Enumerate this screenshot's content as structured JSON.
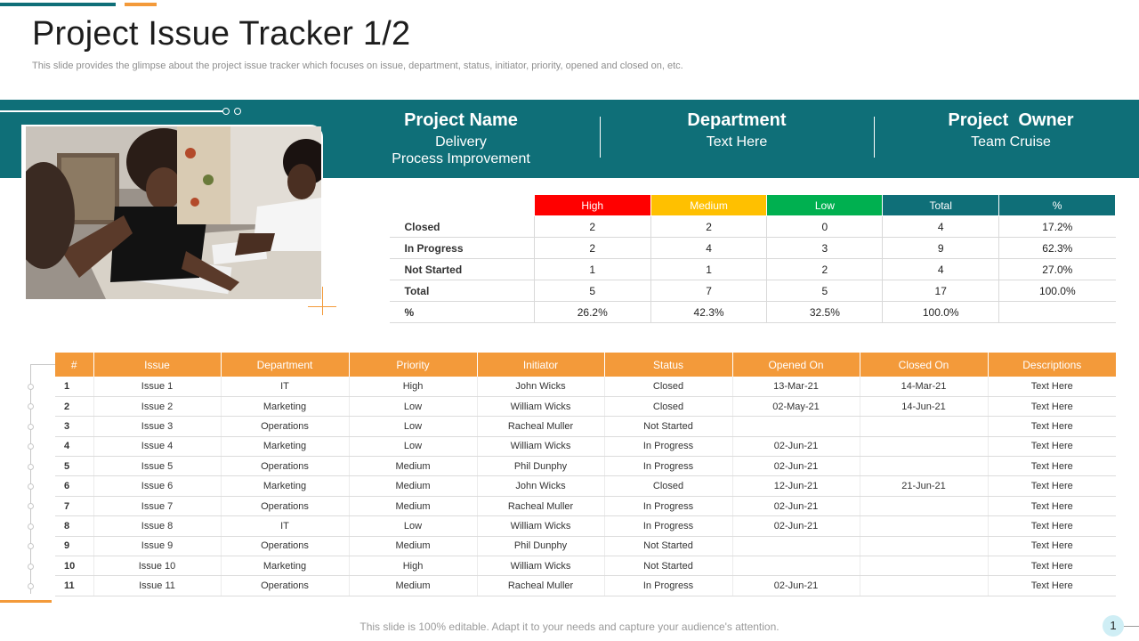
{
  "page": {
    "title": "Project Issue Tracker 1/2",
    "subtitle": "This slide provides the glimpse about the project issue tracker which focuses on issue, department, status, initiator, priority, opened and closed on, etc."
  },
  "project_info": [
    {
      "heading": "Project Name",
      "value_line1": "Delivery",
      "value_line2": "Process Improvement"
    },
    {
      "heading": "Department",
      "value_line1": "Text Here",
      "value_line2": ""
    },
    {
      "heading": "Project  Owner",
      "value_line1": "Team Cruise",
      "value_line2": ""
    }
  ],
  "summary": {
    "headers": [
      {
        "label": "High",
        "color": "#ff0000"
      },
      {
        "label": "Medium",
        "color": "#ffc000"
      },
      {
        "label": "Low",
        "color": "#00b050"
      },
      {
        "label": "Total",
        "color": "#0f6f78"
      },
      {
        "label": "%",
        "color": "#0f6f78"
      }
    ],
    "rows": [
      {
        "label": "Closed",
        "cells": [
          "2",
          "2",
          "0",
          "4",
          "17.2%"
        ]
      },
      {
        "label": "In Progress",
        "cells": [
          "2",
          "4",
          "3",
          "9",
          "62.3%"
        ]
      },
      {
        "label": "Not Started",
        "cells": [
          "1",
          "1",
          "2",
          "4",
          "27.0%"
        ]
      },
      {
        "label": "Total",
        "cells": [
          "5",
          "7",
          "5",
          "17",
          "100.0%"
        ]
      },
      {
        "label": "%",
        "cells": [
          "26.2%",
          "42.3%",
          "32.5%",
          "100.0%",
          ""
        ]
      }
    ]
  },
  "issues": {
    "headers": [
      "#",
      "Issue",
      "Department",
      "Priority",
      "Initiator",
      "Status",
      "Opened On",
      "Closed On",
      "Descriptions"
    ],
    "rows": [
      [
        "1",
        "Issue 1",
        "IT",
        "High",
        "John Wicks",
        "Closed",
        "13-Mar-21",
        "14-Mar-21",
        "Text Here"
      ],
      [
        "2",
        "Issue 2",
        "Marketing",
        "Low",
        "William Wicks",
        "Closed",
        "02-May-21",
        "14-Jun-21",
        "Text Here"
      ],
      [
        "3",
        "Issue 3",
        "Operations",
        "Low",
        "Racheal Muller",
        "Not Started",
        "",
        "",
        "Text Here"
      ],
      [
        "4",
        "Issue 4",
        "Marketing",
        "Low",
        "William Wicks",
        "In Progress",
        "02-Jun-21",
        "",
        "Text Here"
      ],
      [
        "5",
        "Issue 5",
        "Operations",
        "Medium",
        "Phil Dunphy",
        "In Progress",
        "02-Jun-21",
        "",
        "Text Here"
      ],
      [
        "6",
        "Issue 6",
        "Marketing",
        "Medium",
        "John Wicks",
        "Closed",
        "12-Jun-21",
        "21-Jun-21",
        "Text Here"
      ],
      [
        "7",
        "Issue 7",
        "Operations",
        "Medium",
        "Racheal Muller",
        "In Progress",
        "02-Jun-21",
        "",
        "Text Here"
      ],
      [
        "8",
        "Issue 8",
        "IT",
        "Low",
        "William Wicks",
        "In Progress",
        "02-Jun-21",
        "",
        "Text Here"
      ],
      [
        "9",
        "Issue 9",
        "Operations",
        "Medium",
        "Phil Dunphy",
        "Not Started",
        "",
        "",
        "Text Here"
      ],
      [
        "10",
        "Issue 10",
        "Marketing",
        "High",
        "William Wicks",
        "Not Started",
        "",
        "",
        "Text Here"
      ],
      [
        "11",
        "Issue 11",
        "Operations",
        "Medium",
        "Racheal Muller",
        "In Progress",
        "02-Jun-21",
        "",
        "Text Here"
      ]
    ]
  },
  "footer": {
    "note": "This slide is 100% editable. Adapt it to your needs and capture your audience's attention.",
    "page_number": "1"
  },
  "colors": {
    "teal": "#0f6f78",
    "orange": "#f39a3a"
  }
}
